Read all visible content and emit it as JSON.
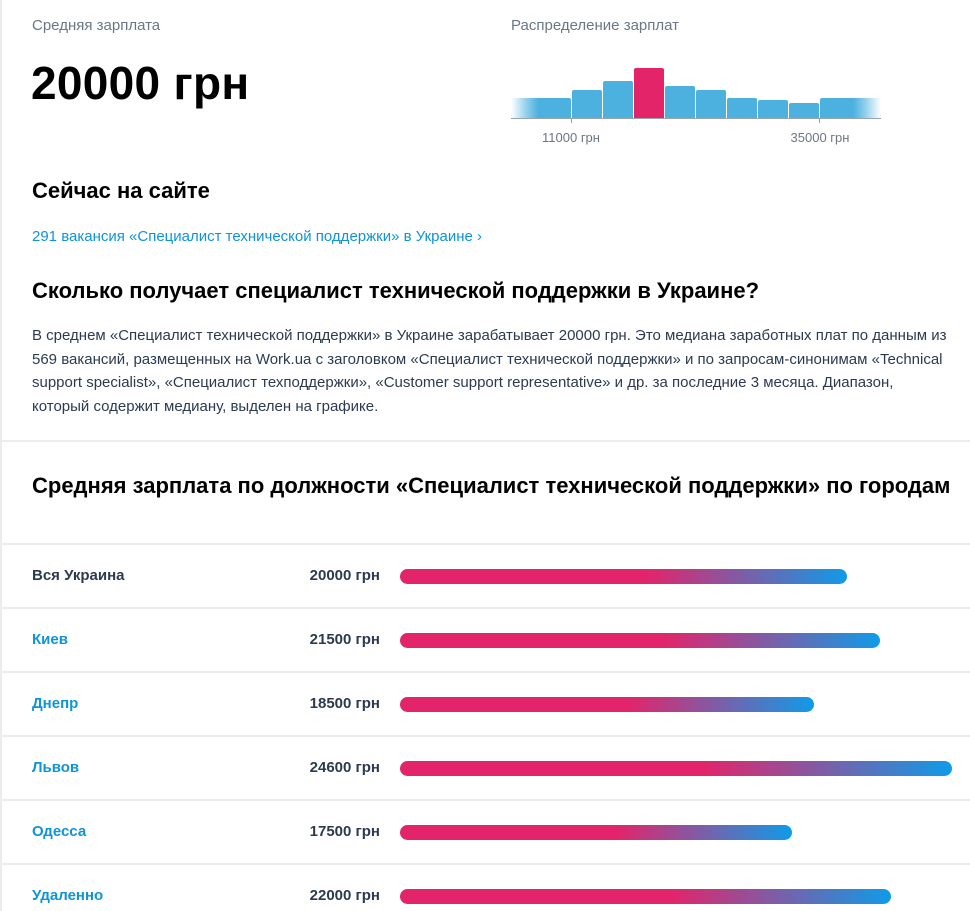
{
  "summary": {
    "avg_label": "Средняя зарплата",
    "avg_value": "20000 грн"
  },
  "distribution": {
    "label": "Распределение зарплат",
    "tick_labels": [
      "11000 грн",
      "35000 грн"
    ],
    "colors": {
      "bar": "#4db1e0",
      "median": "#e32468",
      "axis": "#9aa3ad"
    }
  },
  "now_on_site": {
    "title": "Сейчас на сайте",
    "link_text": "291 вакансия «Специалист технической поддержки» в Украине ›"
  },
  "how_much": {
    "title": "Сколько получает специалист технической поддержки в Украине?",
    "paragraph": "В среднем «Специалист технической поддержки» в Украине зарабатывает 20000 грн. Это медиана заработных плат по данным из 569 вакансий, размещенных на Work.ua с заголовком «Специалист технической поддержки» и по запросам-синонимам «Technical support specialist», «Специалист техподдержки», «Customer support representative» и др. за последние 3 месяца. Диапазон, который содержит медиану, выделен на графике."
  },
  "by_city": {
    "title": "Средняя зарплата по должности «Специалист технической поддержки» по городам",
    "rows": [
      {
        "city": "Вся Украина",
        "salary": "20000 грн",
        "link": false
      },
      {
        "city": "Киев",
        "salary": "21500 грн",
        "link": true
      },
      {
        "city": "Днепр",
        "salary": "18500 грн",
        "link": true
      },
      {
        "city": "Львов",
        "salary": "24600 грн",
        "link": true
      },
      {
        "city": "Одесса",
        "salary": "17500 грн",
        "link": true
      },
      {
        "city": "Удаленно",
        "salary": "22000 грн",
        "link": true
      }
    ],
    "colors": {
      "gradient_start": "#e3246a",
      "gradient_end": "#0f9be8",
      "link": "#0f94d8"
    }
  },
  "chart_data": [
    {
      "type": "bar",
      "title": "Распределение зарплат",
      "categories": [
        "<11000",
        "b2",
        "b3",
        "b4 (median)",
        "b5",
        "b6",
        "b7",
        "b8",
        "b9",
        ">35000"
      ],
      "values": [
        20,
        28,
        37,
        50,
        32,
        28,
        20,
        18,
        15,
        20
      ],
      "highlight_index": 3,
      "xlabel": "",
      "ylabel": "",
      "tick_labels": [
        "11000 грн",
        "35000 грн"
      ],
      "grid": false
    },
    {
      "type": "bar",
      "orientation": "horizontal",
      "title": "Средняя зарплата по должности «Специалист технической поддержки» по городам",
      "categories": [
        "Вся Украина",
        "Киев",
        "Днепр",
        "Львов",
        "Одесса",
        "Удаленно"
      ],
      "values": [
        20000,
        21500,
        18500,
        24600,
        17500,
        22000
      ],
      "unit": "грн"
    }
  ]
}
